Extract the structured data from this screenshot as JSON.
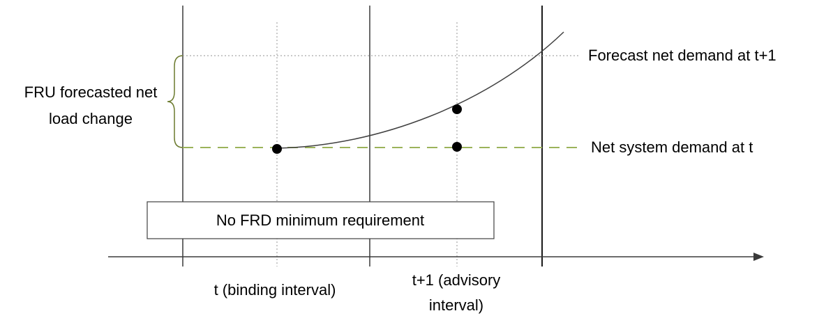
{
  "labels": {
    "fru_line1": "FRU forecasted net",
    "fru_line2": "load change",
    "forecast_demand": "Forecast net demand at t+1",
    "net_demand": "Net system demand at t",
    "no_frd_box": "No FRD minimum requirement",
    "interval_t": "t (binding interval)",
    "interval_t1_line1": "t+1 (advisory",
    "interval_t1_line2": "interval)"
  },
  "colors": {
    "axis": "#3a3a3a",
    "curve": "#404040",
    "dotted_guides": "#a6a6a6",
    "dashed_demand_line": "#9bb35a",
    "brace": "#6b7a2e",
    "points": "#000000",
    "box_border": "#404040"
  }
}
